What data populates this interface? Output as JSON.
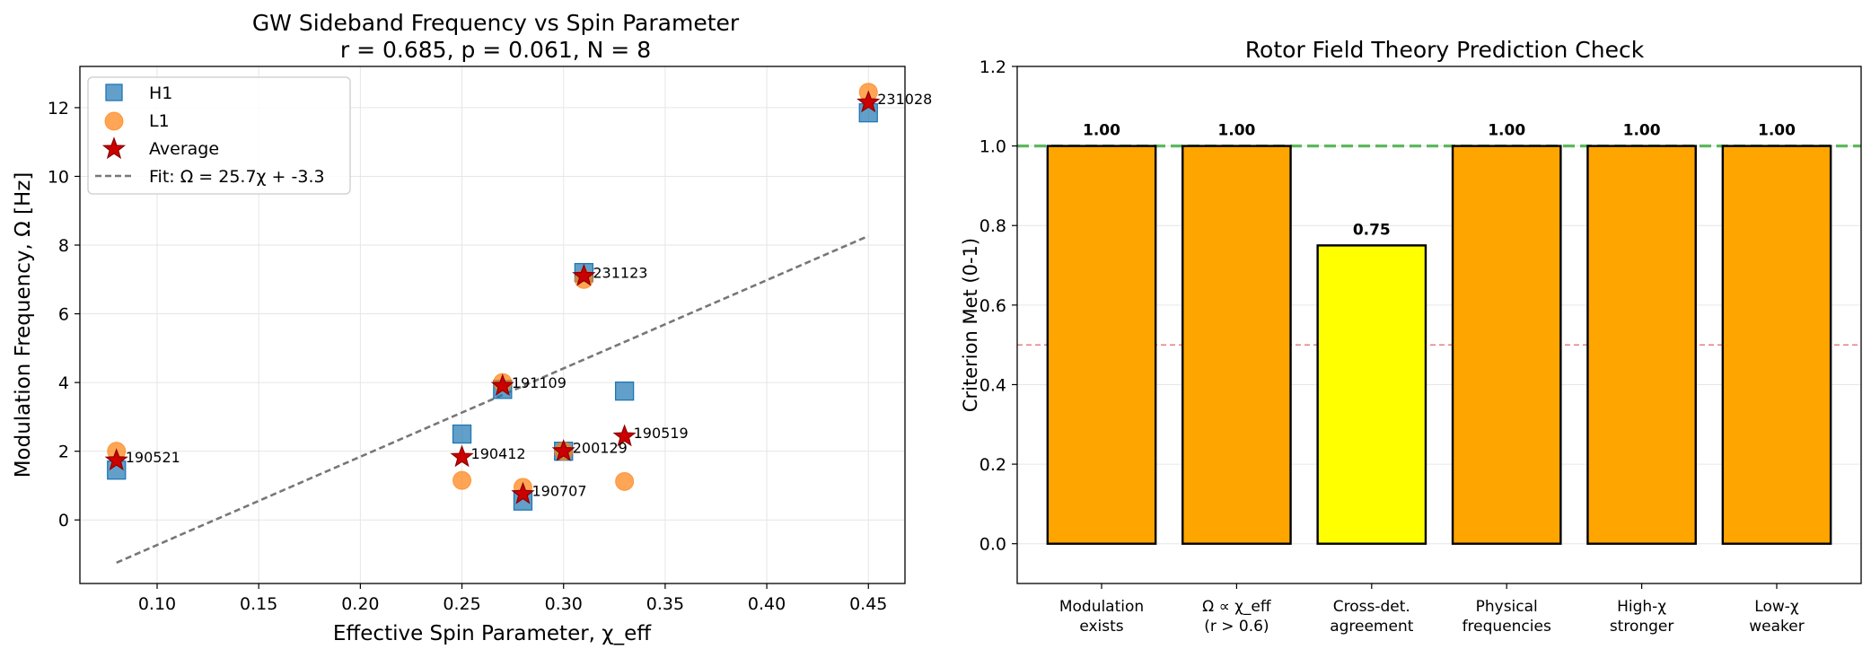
{
  "chart_data": [
    {
      "type": "scatter",
      "title": "GW Sideband Frequency vs Spin Parameter",
      "subtitle": "r = 0.685, p = 0.061, N = 8",
      "xlabel": "Effective Spin Parameter, χ_eff",
      "ylabel": "Modulation Frequency, Ω [Hz]",
      "xlim": [
        0.062,
        0.468
      ],
      "ylim": [
        -1.85,
        13.2
      ],
      "xticks": [
        "0.10",
        "0.15",
        "0.20",
        "0.25",
        "0.30",
        "0.35",
        "0.40",
        "0.45"
      ],
      "xtick_values": [
        0.1,
        0.15,
        0.2,
        0.25,
        0.3,
        0.35,
        0.4,
        0.45
      ],
      "yticks": [
        "0",
        "2",
        "4",
        "6",
        "8",
        "10",
        "12"
      ],
      "ytick_values": [
        0,
        2,
        4,
        6,
        8,
        10,
        12
      ],
      "grid": true,
      "legend_position": "top-left",
      "legend": [
        "H1",
        "L1",
        "Average",
        "Fit: Ω = 25.7χ + -3.3"
      ],
      "colors": {
        "h1": "#1f77b4",
        "l1": "#ff7f0e",
        "average": "#cc0000",
        "fit": "#777777"
      },
      "events": [
        {
          "label": "190521",
          "chi": 0.08,
          "h1": 1.45,
          "l1": 2.0,
          "avg": 1.73
        },
        {
          "label": "190412",
          "chi": 0.25,
          "h1": 2.5,
          "l1": 1.15,
          "avg": 1.83
        },
        {
          "label": "191109",
          "chi": 0.27,
          "h1": 3.8,
          "l1": 4.0,
          "avg": 3.9
        },
        {
          "label": "190707",
          "chi": 0.28,
          "h1": 0.55,
          "l1": 0.95,
          "avg": 0.75
        },
        {
          "label": "200129",
          "chi": 0.3,
          "h1": 2.0,
          "l1": 2.0,
          "avg": 2.0
        },
        {
          "label": "231123",
          "chi": 0.31,
          "h1": 7.2,
          "l1": 7.0,
          "avg": 7.1
        },
        {
          "label": "190519",
          "chi": 0.33,
          "h1": 3.75,
          "l1": 1.12,
          "avg": 2.43
        },
        {
          "label": "231028",
          "chi": 0.45,
          "h1": 11.85,
          "l1": 12.45,
          "avg": 12.15
        }
      ],
      "fit": {
        "slope": 25.7,
        "intercept": -3.3,
        "x_range": [
          0.08,
          0.45
        ]
      }
    },
    {
      "type": "bar",
      "title": "Rotor Field Theory Prediction Check",
      "xlabel": "",
      "ylabel": "Criterion Met (0-1)",
      "ylim": [
        -0.1,
        1.2
      ],
      "yticks": [
        "0.0",
        "0.2",
        "0.4",
        "0.6",
        "0.8",
        "1.0",
        "1.2"
      ],
      "ytick_values": [
        0.0,
        0.2,
        0.4,
        0.6,
        0.8,
        1.0,
        1.2
      ],
      "categories": [
        [
          "Modulation",
          "exists"
        ],
        [
          "Ω ∝ χ_eff",
          "(r > 0.6)"
        ],
        [
          "Cross-det.",
          "agreement"
        ],
        [
          "Physical",
          "frequencies"
        ],
        [
          "High-χ",
          "stronger"
        ],
        [
          "Low-χ",
          "weaker"
        ]
      ],
      "values": [
        1.0,
        1.0,
        0.75,
        1.0,
        1.0,
        1.0
      ],
      "value_labels": [
        "1.00",
        "1.00",
        "0.75",
        "1.00",
        "1.00",
        "1.00"
      ],
      "bar_colors": [
        "#ffa500",
        "#ffa500",
        "#ffff00",
        "#ffa500",
        "#ffa500",
        "#ffa500"
      ],
      "reference_lines": [
        {
          "value": 1.0,
          "color": "#5cb85c",
          "style": "dashed"
        },
        {
          "value": 0.5,
          "color": "#e57373",
          "style": "dashed"
        }
      ],
      "grid": true
    }
  ]
}
